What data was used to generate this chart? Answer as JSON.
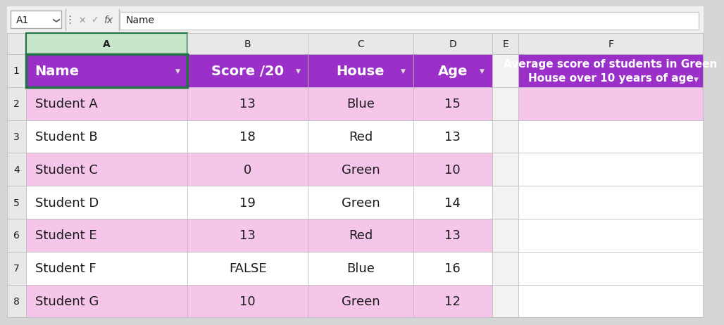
{
  "formula_bar_text": "Name",
  "cell_ref": "A1",
  "header_bg": "#9B30C8",
  "header_text_color": "#FFFFFF",
  "row_alt1_bg": "#F5C6EA",
  "row_alt2_bg": "#FFFFFF",
  "grid_color": "#B0B0B0",
  "col_header_bg": "#E8E8E8",
  "col_header_selected_bg": "#C8E6C9",
  "col_header_selected_border": "#217346",
  "row_header_bg": "#E8E8E8",
  "empty_bg": "#F0F0F0",
  "f1_header_bg": "#9B30C8",
  "pink_light_bg": "#F5C6EA",
  "selected_cell_border": "#217346",
  "columns": [
    "A",
    "B",
    "C",
    "D",
    "E",
    "F"
  ],
  "col_widths_ratio": [
    2.15,
    1.6,
    1.4,
    1.05,
    0.35,
    2.45
  ],
  "rows": [
    "1",
    "2",
    "3",
    "4",
    "5",
    "6",
    "7",
    "8"
  ],
  "data": [
    [
      "Name",
      "Score /20",
      "House",
      "Age",
      "",
      "Average score of students in Green\nHouse over 10 years of age"
    ],
    [
      "Student A",
      "13",
      "Blue",
      "15",
      "",
      ""
    ],
    [
      "Student B",
      "18",
      "Red",
      "13",
      "",
      ""
    ],
    [
      "Student C",
      "0",
      "Green",
      "10",
      "",
      ""
    ],
    [
      "Student D",
      "19",
      "Green",
      "14",
      "",
      ""
    ],
    [
      "Student E",
      "13",
      "Red",
      "13",
      "",
      ""
    ],
    [
      "Student F",
      "FALSE",
      "Blue",
      "16",
      "",
      ""
    ],
    [
      "Student G",
      "10",
      "Green",
      "12",
      "",
      ""
    ]
  ],
  "row_colors": [
    [
      "header",
      "header",
      "header",
      "header",
      "empty",
      "f1_header"
    ],
    [
      "pink",
      "pink",
      "pink",
      "pink",
      "empty",
      "pink_light"
    ],
    [
      "white",
      "white",
      "white",
      "white",
      "empty",
      "white"
    ],
    [
      "pink",
      "pink",
      "pink",
      "pink",
      "empty",
      "white"
    ],
    [
      "white",
      "white",
      "white",
      "white",
      "empty",
      "white"
    ],
    [
      "pink",
      "pink",
      "pink",
      "pink",
      "empty",
      "white"
    ],
    [
      "white",
      "white",
      "white",
      "white",
      "empty",
      "white"
    ],
    [
      "pink",
      "pink",
      "pink",
      "pink",
      "empty",
      "white"
    ]
  ],
  "col_aligns": [
    "left",
    "center",
    "center",
    "center",
    "center",
    "center"
  ],
  "font_size_header": 14,
  "font_size_data": 13,
  "font_size_col_row_header": 10,
  "font_size_f1": 10
}
